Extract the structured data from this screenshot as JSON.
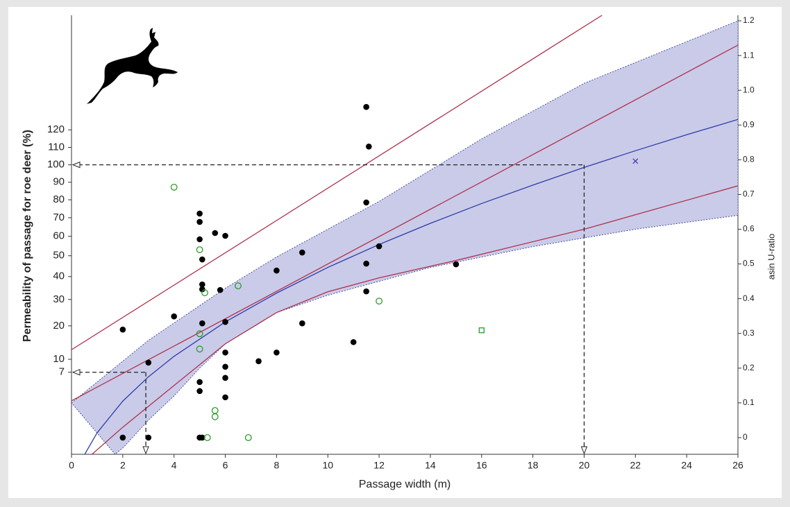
{
  "chart_data": {
    "type": "scatter",
    "x_label": "Passage width (m)",
    "y_label": "Permeability of passage for roe deer (%)",
    "y2_label": "asin U-ratio",
    "xlim": [
      0,
      26
    ],
    "xticks": [
      0,
      2,
      4,
      6,
      8,
      10,
      12,
      14,
      16,
      18,
      20,
      22,
      24,
      26
    ],
    "y2lim": [
      -0.048,
      1.216
    ],
    "y2ticks": [
      0,
      0.1,
      0.2,
      0.3,
      0.4,
      0.5,
      0.6,
      0.7,
      0.8,
      0.9,
      {
        "value": 1,
        "label": "1.0"
      },
      1.1,
      1.2
    ],
    "yscale": "arcsine",
    "yticks": [
      7,
      10,
      20,
      30,
      40,
      50,
      60,
      70,
      80,
      90,
      100,
      110,
      120
    ],
    "band": {
      "color": "#c9cbe9",
      "edge_color": "#4a4f9a",
      "upper": {
        "x": [
          0,
          1,
          2,
          3,
          4,
          6,
          8,
          10,
          12,
          14,
          16,
          18,
          20,
          22,
          24,
          26
        ],
        "values": [
          0.1,
          0.16,
          0.22,
          0.28,
          0.33,
          0.43,
          0.52,
          0.6,
          0.68,
          0.77,
          0.86,
          0.94,
          1.02,
          1.08,
          1.14,
          1.2
        ]
      },
      "lower": {
        "x": [
          1.7,
          2,
          3,
          4,
          5,
          6,
          8,
          10,
          12,
          14,
          16,
          18,
          20,
          22,
          24,
          26
        ],
        "values": [
          -0.048,
          -0.03,
          0.05,
          0.12,
          0.2,
          0.27,
          0.36,
          0.41,
          0.45,
          0.49,
          0.52,
          0.55,
          0.575,
          0.6,
          0.62,
          0.64
        ]
      }
    },
    "lines": [
      {
        "color": "#2f3aa8",
        "x": [
          0.5,
          1,
          2,
          3,
          4,
          6,
          8,
          10,
          12,
          14,
          16,
          18,
          20,
          22,
          24,
          26
        ],
        "values": [
          -0.05,
          0.014,
          0.105,
          0.175,
          0.234,
          0.333,
          0.416,
          0.49,
          0.556,
          0.617,
          0.674,
          0.727,
          0.778,
          0.826,
          0.872,
          0.916
        ]
      },
      {
        "color": "#b0304a",
        "x": [
          0,
          20.7
        ],
        "values": [
          0.253,
          1.216
        ]
      },
      {
        "color": "#b0304a",
        "x": [
          0,
          26
        ],
        "values": [
          0.106,
          1.13
        ]
      },
      {
        "color": "#b0304a",
        "x": [
          0.8,
          2,
          4,
          6,
          8,
          10,
          12,
          15,
          20,
          26
        ],
        "values": [
          -0.048,
          0.03,
          0.15,
          0.27,
          0.36,
          0.42,
          0.46,
          0.51,
          0.6,
          0.725
        ]
      }
    ],
    "series": [
      {
        "marker": "filled-circle",
        "color": "#000000",
        "x": [
          2,
          2,
          3,
          3,
          4,
          5,
          5,
          5,
          5.1,
          5.1,
          5.1,
          5.1,
          5,
          5,
          5,
          5.1,
          5.6,
          5.8,
          6,
          6,
          6,
          6,
          6,
          6,
          7.3,
          8,
          8,
          9,
          9,
          11,
          11.5,
          11.6,
          11.5,
          11.5,
          11.5,
          12,
          15
        ],
        "values": [
          0.311,
          0,
          0.216,
          0,
          0.349,
          0.645,
          0.621,
          0.571,
          0.513,
          0.441,
          0.427,
          0.329,
          0.16,
          0.134,
          0,
          0,
          0.589,
          0.425,
          0.581,
          0.333,
          0.245,
          0.204,
          0.172,
          0.116,
          0.22,
          0.481,
          0.245,
          0.533,
          0.329,
          0.275,
          0.952,
          0.838,
          0.677,
          0.501,
          0.421,
          0.551,
          0.499
        ]
      },
      {
        "marker": "open-circle",
        "color": "#2a9a2a",
        "x": [
          4,
          5,
          5.2,
          6.5,
          5,
          5,
          5.6,
          5.6,
          5.3,
          6.9,
          12
        ],
        "values": [
          0.721,
          0.541,
          0.417,
          0.437,
          0.299,
          0.255,
          0.078,
          0.06,
          0,
          0,
          0.393
        ]
      },
      {
        "marker": "open-square",
        "color": "#2a9a2a",
        "x": [
          16
        ],
        "values": [
          0.309
        ]
      },
      {
        "marker": "cross",
        "color": "#3a3ab0",
        "x": [
          22
        ],
        "values": [
          0.796
        ]
      }
    ],
    "reference_lines": [
      {
        "x": 20,
        "y": 100
      },
      {
        "x": 2.9,
        "y": 7
      }
    ]
  }
}
